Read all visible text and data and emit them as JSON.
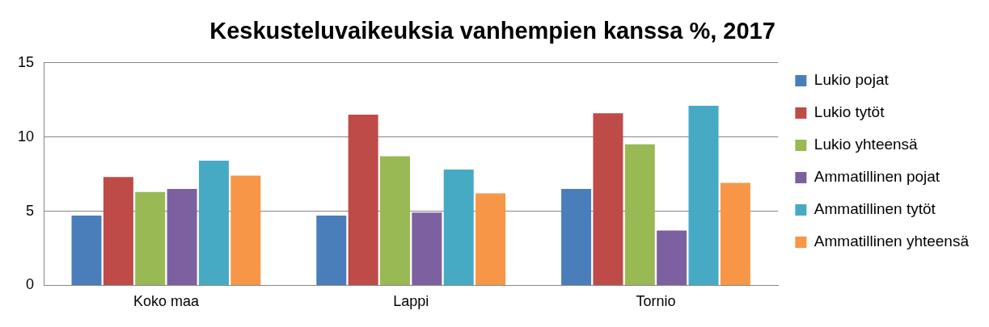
{
  "chart_data": {
    "type": "bar",
    "title": "Keskusteluvaikeuksia vanhempien kanssa %, 2017",
    "categories": [
      "Koko maa",
      "Lappi",
      "Tornio"
    ],
    "series": [
      {
        "name": "Lukio pojat",
        "color": "#4a7ebb",
        "values": [
          4.7,
          4.7,
          6.5
        ]
      },
      {
        "name": "Lukio tytöt",
        "color": "#be4b48",
        "values": [
          7.3,
          11.5,
          11.6
        ]
      },
      {
        "name": "Lukio yhteensä",
        "color": "#98b954",
        "values": [
          6.3,
          8.7,
          9.5
        ]
      },
      {
        "name": "Ammatillinen pojat",
        "color": "#7d60a0",
        "values": [
          6.5,
          4.9,
          3.7
        ]
      },
      {
        "name": "Ammatillinen tytöt",
        "color": "#46aac5",
        "values": [
          8.4,
          7.8,
          12.1
        ]
      },
      {
        "name": "Ammatillinen yhteensä",
        "color": "#f79646",
        "values": [
          7.4,
          6.2,
          6.9
        ]
      }
    ],
    "ylim": [
      0,
      15
    ],
    "yticks": [
      0,
      5,
      10,
      15
    ],
    "grid": "y",
    "legend": "right"
  }
}
